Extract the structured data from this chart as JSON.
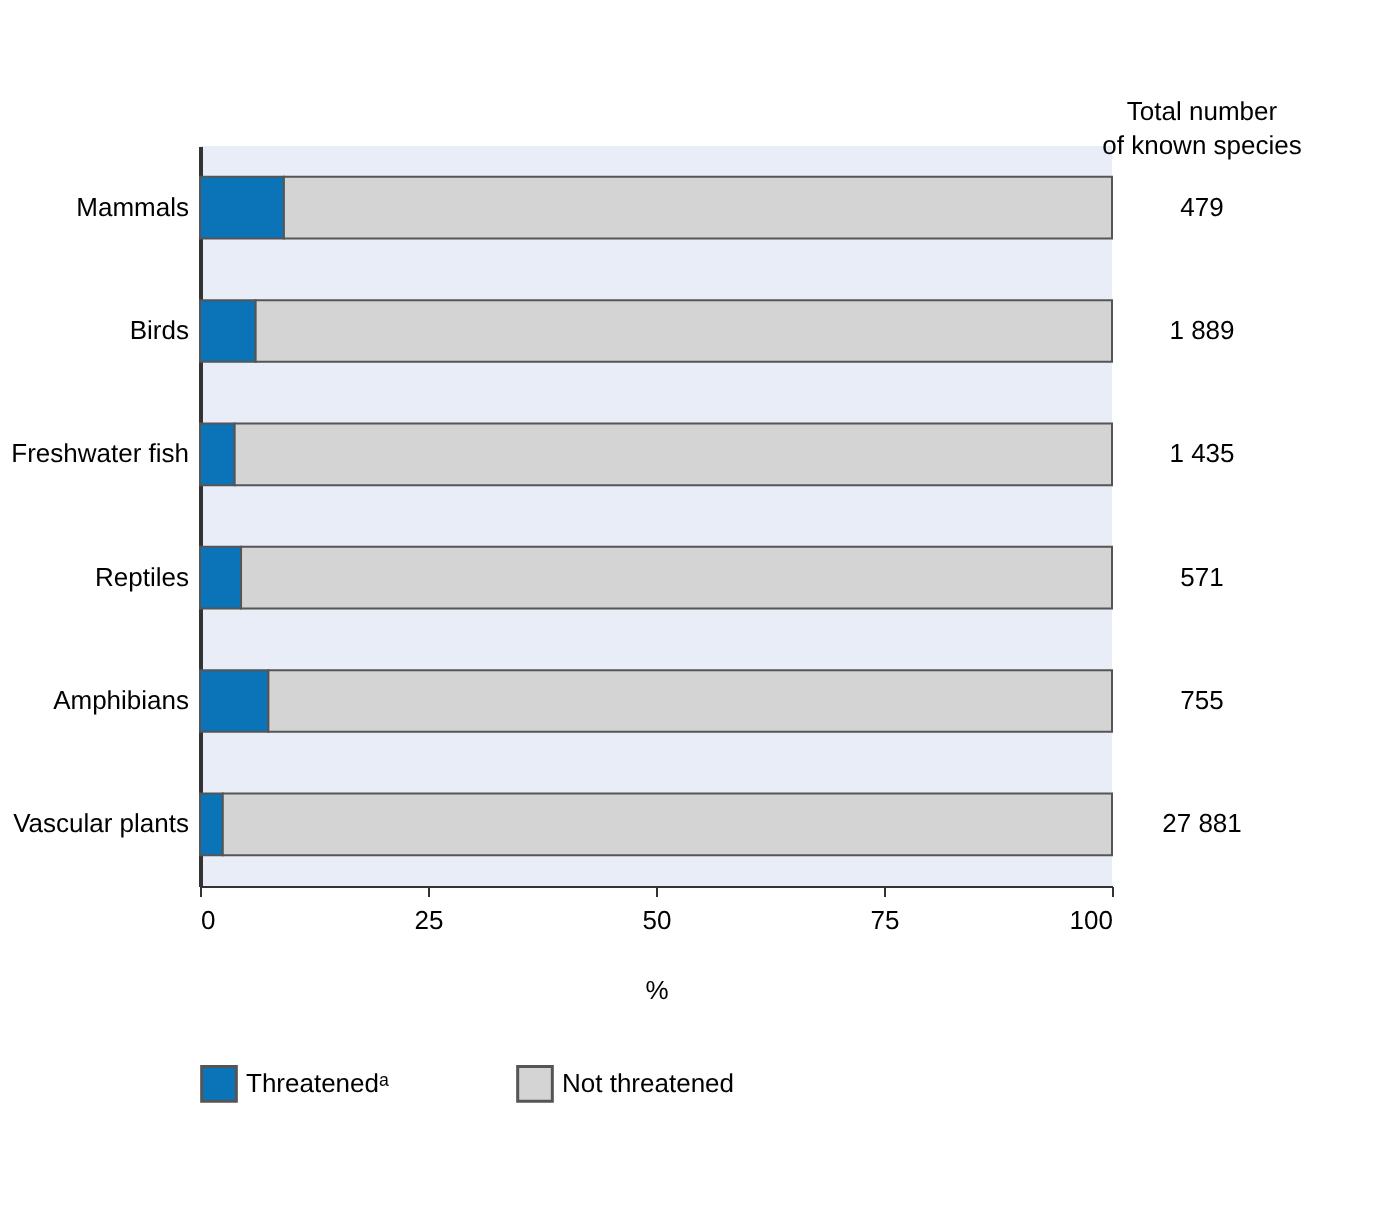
{
  "chart_data": {
    "type": "bar",
    "orientation": "horizontal",
    "stacked": true,
    "categories": [
      "Mammals",
      "Birds",
      "Freshwater fish",
      "Reptiles",
      "Amphibians",
      "Vascular plants"
    ],
    "series": [
      {
        "name": "Threatenedᵃ",
        "color": "#0b74b8",
        "values": [
          9.2,
          6.1,
          3.8,
          4.5,
          7.5,
          2.5
        ]
      },
      {
        "name": "Not threatened",
        "color": "#d4d4d4",
        "values": [
          90.8,
          93.9,
          96.2,
          95.5,
          92.5,
          97.5
        ]
      }
    ],
    "xlim": [
      0,
      100
    ],
    "xticks": [
      0,
      25,
      50,
      75,
      100
    ],
    "xlabel": "%",
    "annotations": [
      "Total number\nof known species",
      "479",
      "1 889",
      "1 435",
      "571",
      "755",
      "27 881"
    ],
    "legend": "bottom",
    "grid": false
  }
}
